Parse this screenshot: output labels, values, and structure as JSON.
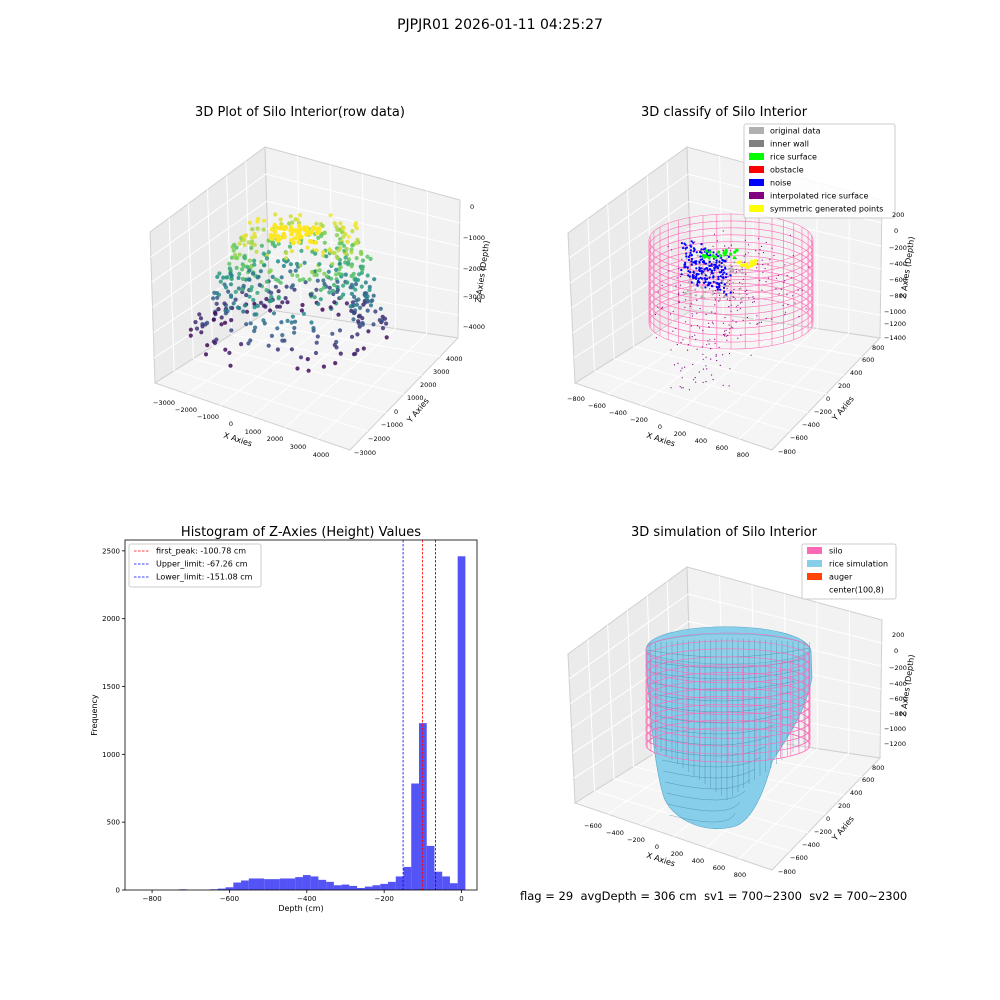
{
  "suptitle": "PJPJR01 2026-01-11 04:25:27",
  "status_line": {
    "flag": "flag = 29",
    "avg_depth": "avgDepth = 306 cm",
    "sv1": "sv1 = 700~2300",
    "sv2": "sv2 = 700~2300"
  },
  "colors": {
    "original_data": "#b0b0b0",
    "inner_wall": "#808080",
    "rice_surface": "#00ff00",
    "obstacle": "#ff0000",
    "noise": "#0000ff",
    "interpolated_rice_surface": "#800080",
    "symmetric_generated_points": "#ffff00",
    "silo": "#ff69b4",
    "rice_simulation": "#87ceeb",
    "auger": "#ff4500",
    "hist_bar": "#4a4af5"
  },
  "chart_data": [
    {
      "type": "scatter3d",
      "title": "3D Plot of Silo Interior(row data)",
      "xlabel": "X Axies",
      "ylabel": "Y Axies",
      "zlabel": "Z Axies (Depth)",
      "xticks": [
        "−3000",
        "−2000",
        "−1000",
        "0",
        "1000",
        "2000",
        "3000",
        "4000"
      ],
      "yticks": [
        "−3000",
        "−2000",
        "−1000",
        "0",
        "1000",
        "2000",
        "3000",
        "4000"
      ],
      "zticks": [
        "0",
        "−1000",
        "−2000",
        "−3000",
        "−4000"
      ],
      "colormap": "viridis"
    },
    {
      "type": "scatter3d",
      "title": "3D classify of Silo Interior",
      "xlabel": "X Axies",
      "ylabel": "Y Axies",
      "zlabel": "Z Axies (Depth)",
      "xticks": [
        "−800",
        "−600",
        "−400",
        "−200",
        "0",
        "200",
        "400",
        "600",
        "800"
      ],
      "yticks": [
        "−800",
        "−600",
        "−400",
        "−200",
        "0",
        "200",
        "400",
        "600",
        "800"
      ],
      "zticks": [
        "200",
        "0",
        "−200",
        "−400",
        "−600",
        "−800",
        "−1000",
        "−1200",
        "−1400"
      ],
      "legend_position": "top-right",
      "legend": [
        {
          "label": "original data",
          "color": "#b0b0b0"
        },
        {
          "label": "inner wall",
          "color": "#808080"
        },
        {
          "label": "rice surface",
          "color": "#00ff00"
        },
        {
          "label": "obstacle",
          "color": "#ff0000"
        },
        {
          "label": "noise",
          "color": "#0000ff"
        },
        {
          "label": "interpolated rice surface",
          "color": "#800080"
        },
        {
          "label": "symmetric generated points",
          "color": "#ffff00"
        }
      ]
    },
    {
      "type": "bar",
      "title": "Histogram of Z-Axies (Height) Values",
      "xlabel": "Depth (cm)",
      "ylabel": "Frequency",
      "xlim": [
        -870,
        40
      ],
      "ylim": [
        0,
        2580
      ],
      "xticks": [
        -800,
        -600,
        -400,
        -200,
        0
      ],
      "xtick_labels": [
        "−800",
        "−600",
        "−400",
        "−200",
        "0"
      ],
      "yticks": [
        0,
        500,
        1000,
        1500,
        2000,
        2500
      ],
      "bin_width": 20,
      "bins": [
        {
          "x": -720,
          "count": 5
        },
        {
          "x": -640,
          "count": 5
        },
        {
          "x": -620,
          "count": 10
        },
        {
          "x": -600,
          "count": 20
        },
        {
          "x": -580,
          "count": 55
        },
        {
          "x": -560,
          "count": 70
        },
        {
          "x": -540,
          "count": 85
        },
        {
          "x": -520,
          "count": 85
        },
        {
          "x": -500,
          "count": 80
        },
        {
          "x": -480,
          "count": 80
        },
        {
          "x": -460,
          "count": 85
        },
        {
          "x": -440,
          "count": 85
        },
        {
          "x": -420,
          "count": 95
        },
        {
          "x": -400,
          "count": 110
        },
        {
          "x": -380,
          "count": 100
        },
        {
          "x": -360,
          "count": 75
        },
        {
          "x": -340,
          "count": 60
        },
        {
          "x": -320,
          "count": 35
        },
        {
          "x": -300,
          "count": 40
        },
        {
          "x": -280,
          "count": 30
        },
        {
          "x": -260,
          "count": 15
        },
        {
          "x": -240,
          "count": 25
        },
        {
          "x": -220,
          "count": 35
        },
        {
          "x": -200,
          "count": 45
        },
        {
          "x": -180,
          "count": 60
        },
        {
          "x": -160,
          "count": 100
        },
        {
          "x": -140,
          "count": 170
        },
        {
          "x": -120,
          "count": 785
        },
        {
          "x": -100,
          "count": 1230
        },
        {
          "x": -80,
          "count": 325
        },
        {
          "x": -60,
          "count": 135
        },
        {
          "x": -40,
          "count": 100
        },
        {
          "x": -20,
          "count": 50
        },
        {
          "x": 0,
          "count": 2460
        }
      ],
      "reference_lines": [
        {
          "x": -100.78,
          "label": "first_peak: -100.78 cm",
          "color": "#ff0000"
        },
        {
          "x": -67.26,
          "label": "Upper_limit: -67.26 cm",
          "color": "#0000ff"
        },
        {
          "x": -151.08,
          "label": "Lower_limit: -151.08 cm",
          "color": "#0000ff"
        }
      ],
      "legend_position": "top-left"
    },
    {
      "type": "surface3d",
      "title": "3D simulation of Silo Interior",
      "xlabel": "X Axies",
      "ylabel": "Y Axies",
      "zlabel": "Z Axies (Depth)",
      "xticks": [
        "−600",
        "−400",
        "−200",
        "0",
        "200",
        "400",
        "600",
        "800"
      ],
      "yticks": [
        "−800",
        "−600",
        "−400",
        "−200",
        "0",
        "200",
        "400",
        "600",
        "800"
      ],
      "zticks": [
        "200",
        "0",
        "−200",
        "−400",
        "−600",
        "−800",
        "−1000",
        "−1200"
      ],
      "legend_position": "top-right",
      "legend": [
        {
          "label": "silo",
          "color": "#ff69b4"
        },
        {
          "label": "rice simulation",
          "color": "#87ceeb"
        },
        {
          "label": "auger",
          "color": "#ff4500"
        },
        {
          "label": "center(100,8)",
          "color": "#ffffff"
        }
      ]
    }
  ]
}
